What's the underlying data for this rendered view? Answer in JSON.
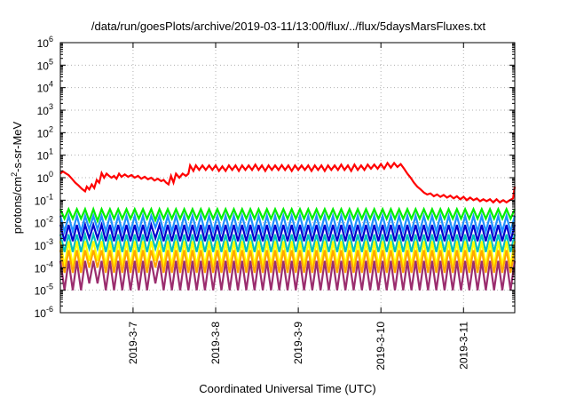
{
  "chart_data": {
    "type": "line",
    "title": "/data/run/goesPlots/archive/2019-03-11/13:00/flux/../flux/5daysMarsFluxes.txt",
    "xlabel": "Coordinated Universal Time (UTC)",
    "ylabel": {
      "pre": "protons/cm",
      "sup": "2",
      "post": "-s-sr-MeV"
    },
    "yscale": "log",
    "ylim_exp": [
      -6,
      6
    ],
    "y_ticks": [
      {
        "base": "10",
        "exp": "6"
      },
      {
        "base": "10",
        "exp": "5"
      },
      {
        "base": "10",
        "exp": "4"
      },
      {
        "base": "10",
        "exp": "3"
      },
      {
        "base": "10",
        "exp": "2"
      },
      {
        "base": "10",
        "exp": "1"
      },
      {
        "base": "10",
        "exp": "0"
      },
      {
        "base": "10",
        "exp": "-1"
      },
      {
        "base": "10",
        "exp": "-2"
      },
      {
        "base": "10",
        "exp": "-3"
      },
      {
        "base": "10",
        "exp": "-4"
      },
      {
        "base": "10",
        "exp": "-5"
      },
      {
        "base": "10",
        "exp": "-6"
      }
    ],
    "xlim_days": [
      6.12,
      11.62
    ],
    "x_ticks": [
      {
        "day": 7,
        "label": "2019-3-7"
      },
      {
        "day": 8,
        "label": "2019-3-8"
      },
      {
        "day": 9,
        "label": "2019-3-9"
      },
      {
        "day": 10,
        "label": "2019-3-10"
      },
      {
        "day": 11,
        "label": "2019-3-11"
      }
    ],
    "grid": "dotted",
    "sawtooth_period_days": 0.1,
    "series": [
      {
        "color": "#ff0000",
        "width": 2.2,
        "points": [
          [
            6.12,
            1.5
          ],
          [
            6.15,
            1.9
          ],
          [
            6.18,
            1.6
          ],
          [
            6.22,
            1.3
          ],
          [
            6.26,
            0.9
          ],
          [
            6.3,
            0.6
          ],
          [
            6.34,
            0.45
          ],
          [
            6.38,
            0.32
          ],
          [
            6.42,
            0.25
          ],
          [
            6.44,
            0.4
          ],
          [
            6.47,
            0.3
          ],
          [
            6.5,
            0.5
          ],
          [
            6.53,
            0.35
          ],
          [
            6.56,
            0.8
          ],
          [
            6.59,
            0.6
          ],
          [
            6.62,
            1.6
          ],
          [
            6.65,
            1.0
          ],
          [
            6.68,
            1.5
          ],
          [
            6.71,
            1.2
          ],
          [
            6.74,
            1.0
          ],
          [
            6.77,
            1.2
          ],
          [
            6.8,
            0.9
          ],
          [
            6.83,
            1.5
          ],
          [
            6.86,
            1.1
          ],
          [
            6.9,
            1.4
          ],
          [
            6.94,
            1.1
          ],
          [
            6.98,
            1.3
          ],
          [
            7.02,
            1.0
          ],
          [
            7.06,
            1.2
          ],
          [
            7.1,
            0.9
          ],
          [
            7.14,
            1.1
          ],
          [
            7.18,
            0.85
          ],
          [
            7.22,
            1.0
          ],
          [
            7.26,
            0.75
          ],
          [
            7.3,
            0.9
          ],
          [
            7.34,
            0.7
          ],
          [
            7.37,
            0.8
          ],
          [
            7.4,
            0.6
          ],
          [
            7.43,
            0.5
          ],
          [
            7.46,
            1.2
          ],
          [
            7.49,
            0.6
          ],
          [
            7.52,
            1.5
          ],
          [
            7.56,
            1.0
          ],
          [
            7.6,
            1.5
          ],
          [
            7.64,
            1.2
          ],
          [
            7.67,
            1.5
          ],
          [
            7.69,
            3.5
          ],
          [
            7.73,
            2.0
          ],
          [
            7.76,
            3.5
          ],
          [
            7.8,
            2.2
          ],
          [
            7.84,
            3.5
          ],
          [
            7.88,
            2.2
          ],
          [
            7.92,
            3.5
          ],
          [
            7.96,
            2.2
          ],
          [
            8.0,
            3.5
          ],
          [
            8.04,
            2.0
          ],
          [
            8.08,
            3.2
          ],
          [
            8.12,
            2.0
          ],
          [
            8.16,
            3.5
          ],
          [
            8.2,
            2.2
          ],
          [
            8.24,
            3.5
          ],
          [
            8.28,
            2.0
          ],
          [
            8.32,
            3.5
          ],
          [
            8.36,
            2.2
          ],
          [
            8.4,
            3.5
          ],
          [
            8.44,
            2.2
          ],
          [
            8.48,
            3.8
          ],
          [
            8.52,
            2.2
          ],
          [
            8.56,
            3.5
          ],
          [
            8.6,
            2.0
          ],
          [
            8.64,
            3.5
          ],
          [
            8.68,
            2.2
          ],
          [
            8.72,
            3.5
          ],
          [
            8.76,
            2.2
          ],
          [
            8.8,
            3.6
          ],
          [
            8.84,
            2.2
          ],
          [
            8.88,
            3.5
          ],
          [
            8.92,
            2.0
          ],
          [
            8.96,
            3.5
          ],
          [
            9.0,
            2.2
          ],
          [
            9.04,
            3.5
          ],
          [
            9.08,
            2.2
          ],
          [
            9.12,
            3.5
          ],
          [
            9.16,
            2.0
          ],
          [
            9.2,
            3.5
          ],
          [
            9.24,
            2.2
          ],
          [
            9.28,
            3.5
          ],
          [
            9.32,
            2.0
          ],
          [
            9.36,
            3.5
          ],
          [
            9.4,
            2.2
          ],
          [
            9.44,
            3.5
          ],
          [
            9.48,
            2.2
          ],
          [
            9.52,
            3.8
          ],
          [
            9.56,
            2.2
          ],
          [
            9.6,
            3.5
          ],
          [
            9.64,
            2.0
          ],
          [
            9.68,
            3.8
          ],
          [
            9.72,
            2.2
          ],
          [
            9.76,
            3.5
          ],
          [
            9.8,
            2.2
          ],
          [
            9.84,
            3.8
          ],
          [
            9.88,
            2.5
          ],
          [
            9.92,
            3.8
          ],
          [
            9.96,
            2.5
          ],
          [
            10.0,
            4.0
          ],
          [
            10.04,
            2.5
          ],
          [
            10.08,
            4.5
          ],
          [
            10.12,
            2.8
          ],
          [
            10.16,
            4.5
          ],
          [
            10.2,
            3.0
          ],
          [
            10.24,
            4.0
          ],
          [
            10.28,
            2.5
          ],
          [
            10.32,
            1.5
          ],
          [
            10.36,
            1.0
          ],
          [
            10.4,
            0.6
          ],
          [
            10.44,
            0.4
          ],
          [
            10.48,
            0.3
          ],
          [
            10.52,
            0.22
          ],
          [
            10.56,
            0.18
          ],
          [
            10.6,
            0.2
          ],
          [
            10.64,
            0.15
          ],
          [
            10.68,
            0.18
          ],
          [
            10.72,
            0.14
          ],
          [
            10.76,
            0.17
          ],
          [
            10.8,
            0.13
          ],
          [
            10.84,
            0.16
          ],
          [
            10.88,
            0.12
          ],
          [
            10.92,
            0.15
          ],
          [
            10.96,
            0.11
          ],
          [
            11.0,
            0.14
          ],
          [
            11.04,
            0.1
          ],
          [
            11.08,
            0.13
          ],
          [
            11.12,
            0.1
          ],
          [
            11.16,
            0.12
          ],
          [
            11.2,
            0.09
          ],
          [
            11.24,
            0.11
          ],
          [
            11.28,
            0.09
          ],
          [
            11.32,
            0.11
          ],
          [
            11.36,
            0.08
          ],
          [
            11.4,
            0.11
          ],
          [
            11.44,
            0.08
          ],
          [
            11.48,
            0.1
          ],
          [
            11.52,
            0.08
          ],
          [
            11.56,
            0.1
          ],
          [
            11.6,
            0.12
          ],
          [
            11.62,
            0.4
          ]
        ]
      },
      {
        "color": "#00ee00",
        "width": 2.2,
        "sawtooth": {
          "high": 0.04,
          "low": 0.015,
          "dips": [
            [
              6.45,
              6.62,
              0.012
            ],
            [
              7.2,
              7.32,
              0.013
            ]
          ]
        }
      },
      {
        "color": "#1e90ff",
        "width": 2.2,
        "sawtooth": {
          "high": 0.02,
          "low": 0.004,
          "dips": [
            [
              6.45,
              6.62,
              0.005
            ],
            [
              7.2,
              7.32,
              0.006
            ]
          ]
        }
      },
      {
        "color": "#0000cd",
        "width": 2.2,
        "sawtooth": {
          "high": 0.008,
          "low": 0.0015,
          "dips": [
            [
              6.45,
              6.62,
              0.002
            ],
            [
              7.2,
              7.32,
              0.002
            ]
          ]
        }
      },
      {
        "color": "#00bfbf",
        "width": 2.2,
        "sawtooth": {
          "high": 0.003,
          "low": 0.0005,
          "dips": [
            [
              6.45,
              6.62,
              0.0007
            ],
            [
              7.2,
              7.32,
              0.0007
            ]
          ]
        }
      },
      {
        "color": "#ffff00",
        "width": 2.2,
        "sawtooth": {
          "high": 0.0015,
          "low": 0.00012,
          "dips": [
            [
              6.45,
              6.62,
              0.0002
            ],
            [
              7.2,
              7.32,
              0.0002
            ]
          ]
        }
      },
      {
        "color": "#ffa500",
        "width": 2.2,
        "sawtooth": {
          "high": 0.0006,
          "low": 6e-05,
          "dips": [
            [
              6.45,
              6.62,
              0.0001
            ],
            [
              7.2,
              7.32,
              0.0001
            ]
          ]
        }
      },
      {
        "color": "#9b2d6e",
        "width": 2.2,
        "sawtooth": {
          "high": 0.0002,
          "low": 1e-05,
          "dips": [
            [
              6.45,
              6.62,
              2e-05
            ],
            [
              7.2,
              7.32,
              2e-05
            ]
          ]
        }
      }
    ]
  }
}
